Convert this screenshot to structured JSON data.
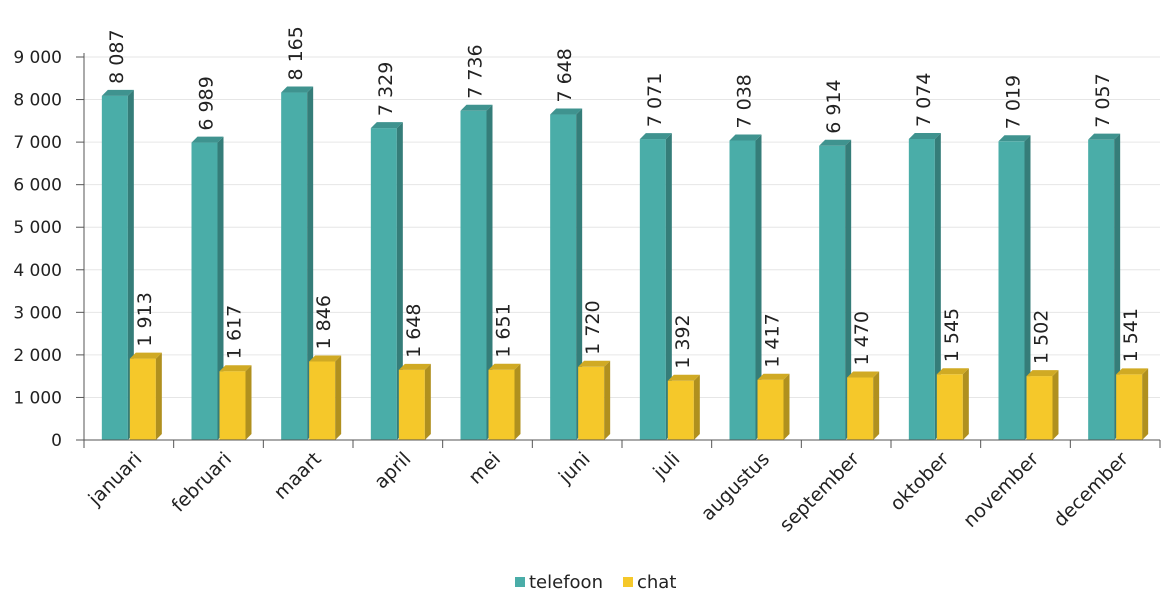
{
  "chart_data": {
    "type": "bar",
    "categories": [
      "januari",
      "februari",
      "maart",
      "april",
      "mei",
      "juni",
      "juli",
      "augustus",
      "september",
      "oktober",
      "november",
      "december"
    ],
    "series": [
      {
        "name": "telefoon",
        "color": "#4aada8",
        "values": [
          8087,
          6989,
          8165,
          7329,
          7736,
          7648,
          7071,
          7038,
          6914,
          7074,
          7019,
          7057
        ],
        "labels": [
          "8 087",
          "6 989",
          "8 165",
          "7 329",
          "7 736",
          "7 648",
          "7 071",
          "7 038",
          "6 914",
          "7 074",
          "7 019",
          "7 057"
        ]
      },
      {
        "name": "chat",
        "color": "#f5c82a",
        "values": [
          1913,
          1617,
          1846,
          1648,
          1651,
          1720,
          1392,
          1417,
          1470,
          1545,
          1502,
          1541
        ],
        "labels": [
          "1 913",
          "1 617",
          "1 846",
          "1 648",
          "1 651",
          "1 720",
          "1 392",
          "1 417",
          "1 470",
          "1 545",
          "1 502",
          "1 541"
        ]
      }
    ],
    "ylim": [
      0,
      9000
    ],
    "yticks": [
      0,
      1000,
      2000,
      3000,
      4000,
      5000,
      6000,
      7000,
      8000,
      9000
    ],
    "ytick_labels": [
      "0",
      "1 000",
      "2 000",
      "3 000",
      "4 000",
      "5 000",
      "6 000",
      "7 000",
      "8 000",
      "9 000"
    ],
    "title": "",
    "xlabel": "",
    "ylabel": "",
    "grid": true,
    "legend_position": "bottom-center",
    "style": "3d-bars"
  }
}
